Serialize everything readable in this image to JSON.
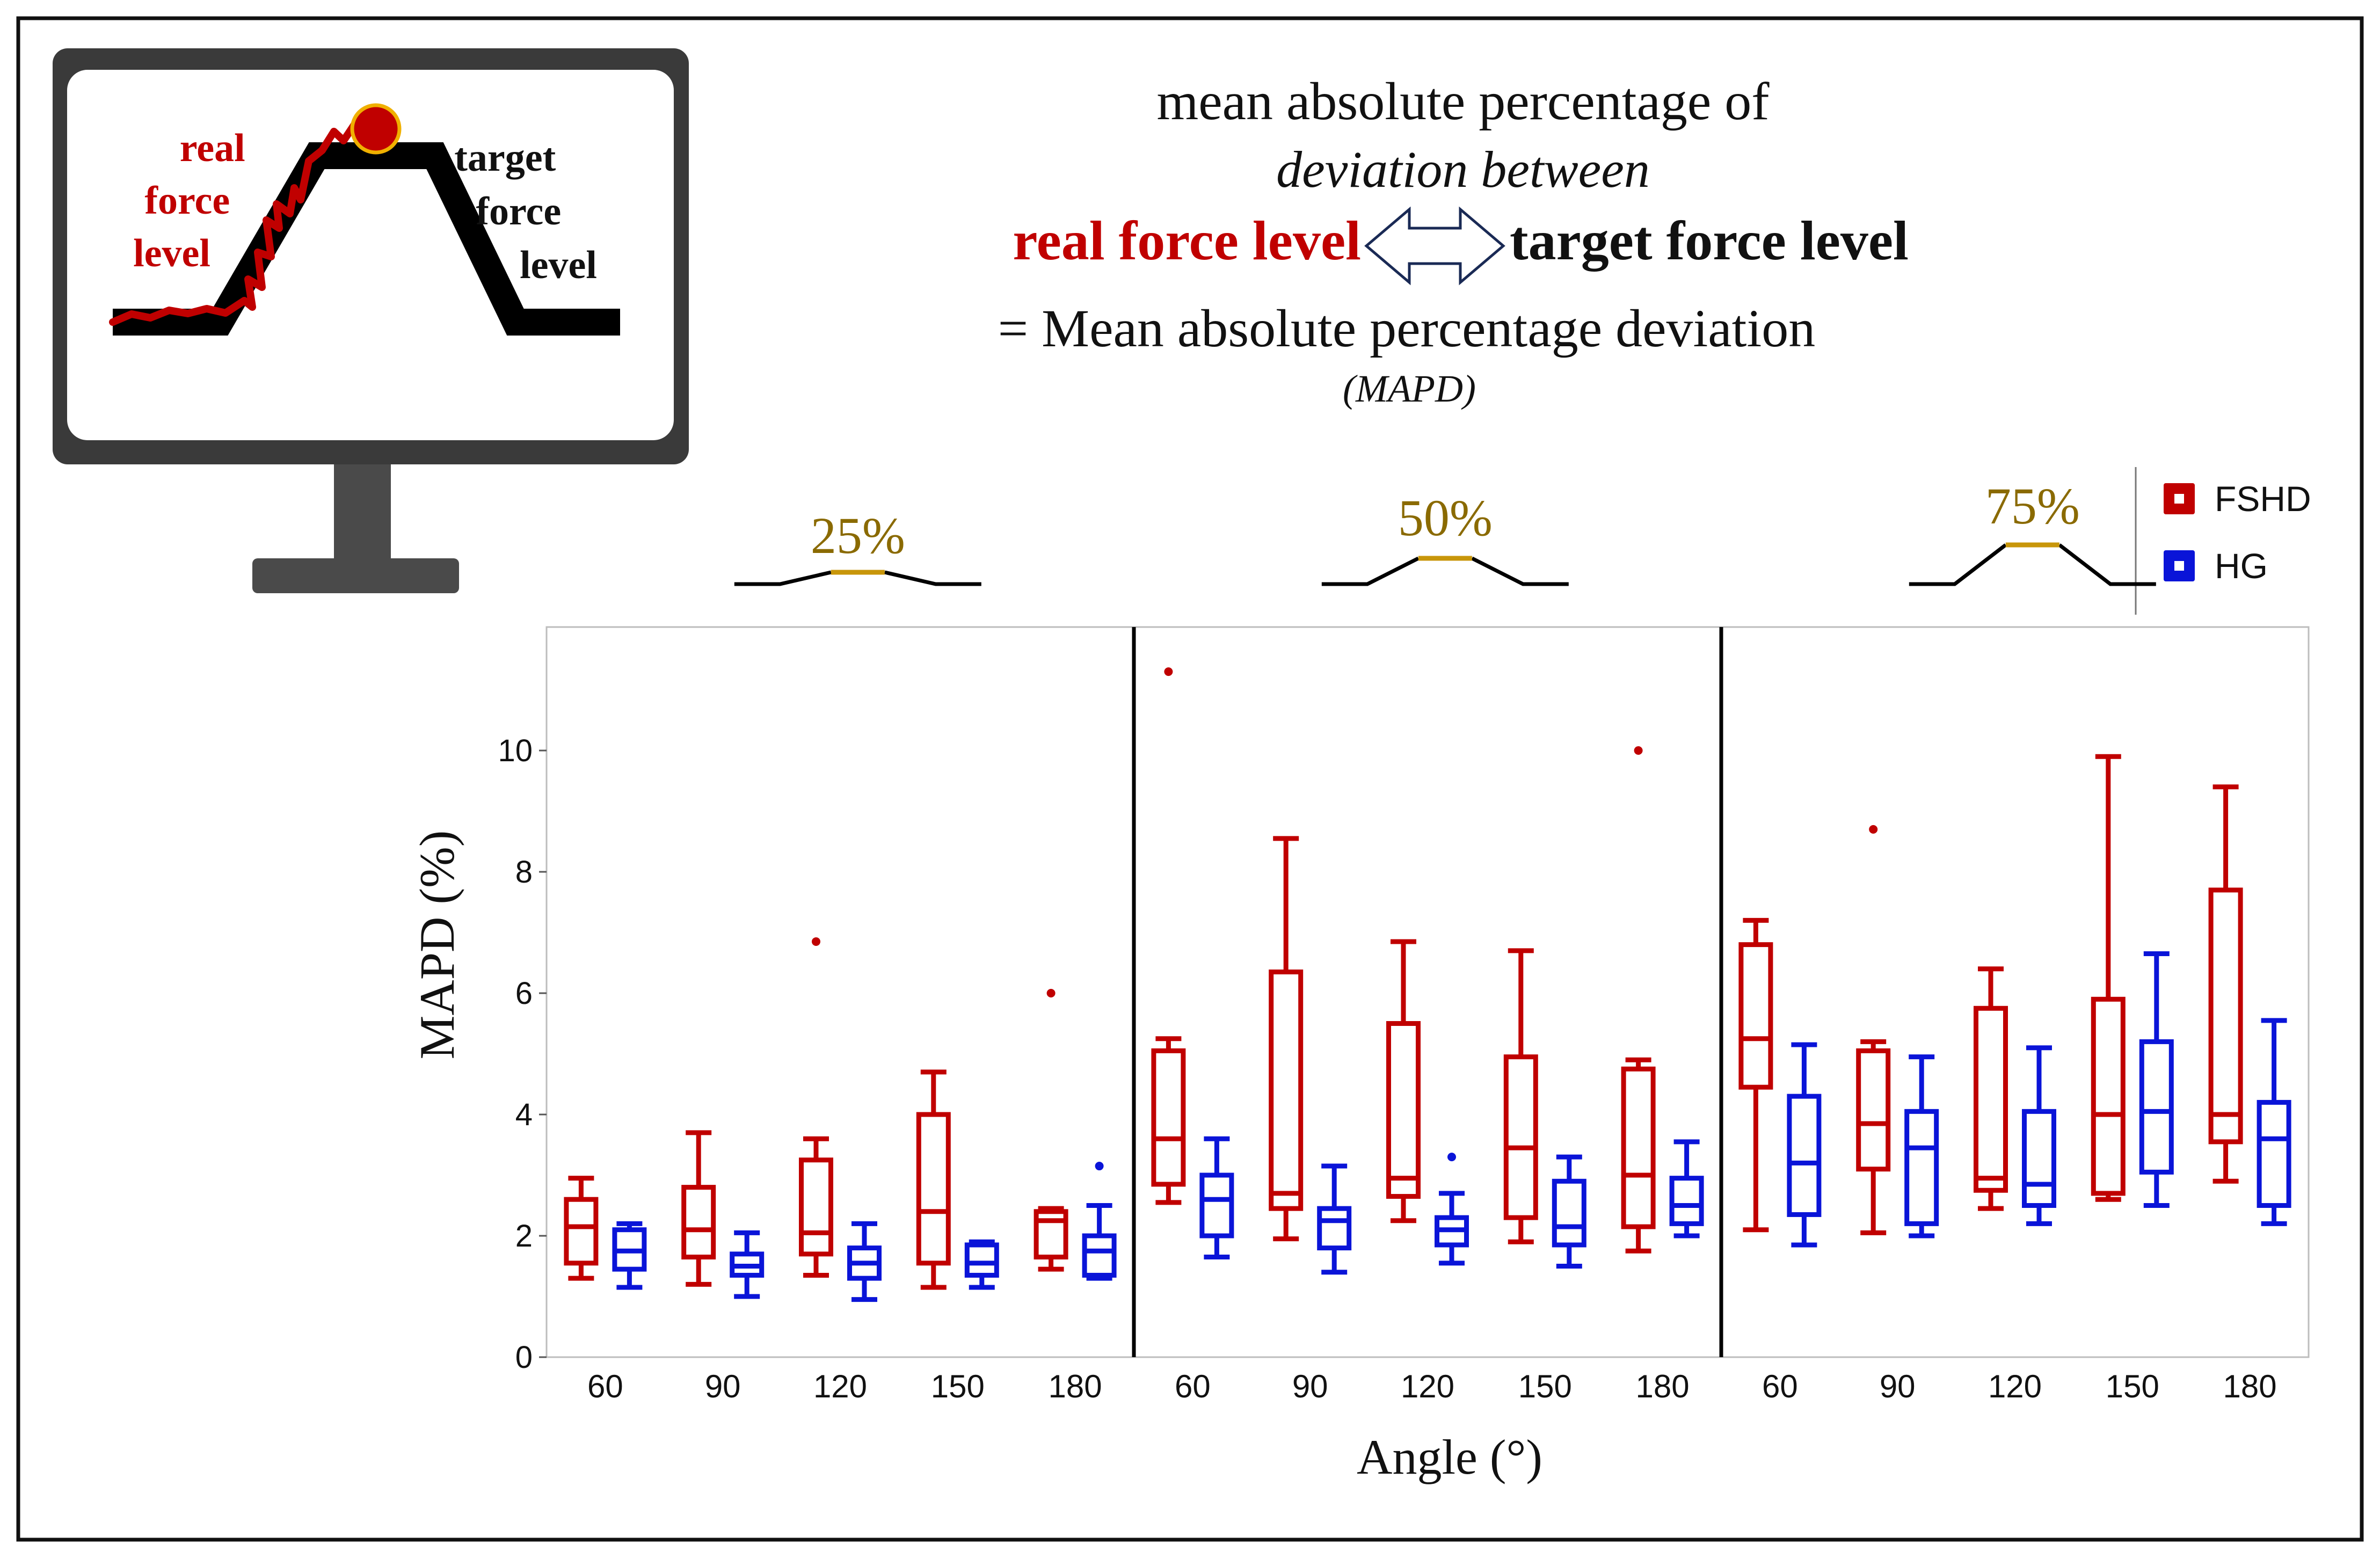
{
  "header": {
    "line1": "mean absolute percentage of",
    "line2": "deviation between",
    "real_label": "real force level",
    "target_label": "target force level",
    "line4": "= Mean absolute percentage deviation",
    "line5": "(MAPD)"
  },
  "monitor": {
    "real_label": [
      "real",
      "force",
      "level"
    ],
    "target_label": [
      "target",
      "force",
      "level"
    ]
  },
  "colors": {
    "FSHD": "#c00000",
    "HG": "#0a14d8",
    "gold": "#c8960a",
    "gold_text": "#8a6a00"
  },
  "chart_data": {
    "type": "box",
    "ylabel": "MAPD (%)",
    "xlabel": "Angle (°)",
    "ylim": [
      0,
      12
    ],
    "yticks": [
      0,
      2,
      4,
      6,
      8,
      10
    ],
    "legend": {
      "position": "top-right",
      "entries": [
        "FSHD",
        "HG"
      ]
    },
    "panels": [
      {
        "label": "25%",
        "categories": [
          "60",
          "90",
          "120",
          "150",
          "180"
        ],
        "series": [
          {
            "name": "FSHD",
            "boxes": [
              {
                "min": 1.3,
                "q1": 1.55,
                "median": 2.15,
                "q3": 2.6,
                "max": 2.95,
                "outliers": []
              },
              {
                "min": 1.2,
                "q1": 1.65,
                "median": 2.1,
                "q3": 2.8,
                "max": 3.7,
                "outliers": []
              },
              {
                "min": 1.35,
                "q1": 1.7,
                "median": 2.05,
                "q3": 3.25,
                "max": 3.6,
                "outliers": [
                  6.85
                ]
              },
              {
                "min": 1.15,
                "q1": 1.55,
                "median": 2.4,
                "q3": 4.0,
                "max": 4.7,
                "outliers": []
              },
              {
                "min": 1.45,
                "q1": 1.65,
                "median": 2.25,
                "q3": 2.4,
                "max": 2.45,
                "outliers": [
                  6.0
                ]
              }
            ]
          },
          {
            "name": "HG",
            "boxes": [
              {
                "min": 1.15,
                "q1": 1.45,
                "median": 1.75,
                "q3": 2.1,
                "max": 2.2,
                "outliers": []
              },
              {
                "min": 1.0,
                "q1": 1.35,
                "median": 1.5,
                "q3": 1.7,
                "max": 2.05,
                "outliers": []
              },
              {
                "min": 0.95,
                "q1": 1.3,
                "median": 1.55,
                "q3": 1.8,
                "max": 2.2,
                "outliers": []
              },
              {
                "min": 1.15,
                "q1": 1.35,
                "median": 1.55,
                "q3": 1.85,
                "max": 1.9,
                "outliers": []
              },
              {
                "min": 1.3,
                "q1": 1.35,
                "median": 1.75,
                "q3": 2.0,
                "max": 2.5,
                "outliers": [
                  3.15
                ]
              }
            ]
          }
        ]
      },
      {
        "label": "50%",
        "categories": [
          "60",
          "90",
          "120",
          "150",
          "180"
        ],
        "series": [
          {
            "name": "FSHD",
            "boxes": [
              {
                "min": 2.55,
                "q1": 2.85,
                "median": 3.6,
                "q3": 5.05,
                "max": 5.25,
                "outliers": [
                  11.3
                ]
              },
              {
                "min": 1.95,
                "q1": 2.45,
                "median": 2.7,
                "q3": 6.35,
                "max": 8.55,
                "outliers": []
              },
              {
                "min": 2.25,
                "q1": 2.65,
                "median": 2.95,
                "q3": 5.5,
                "max": 6.85,
                "outliers": []
              },
              {
                "min": 1.9,
                "q1": 2.3,
                "median": 3.45,
                "q3": 4.95,
                "max": 6.7,
                "outliers": []
              },
              {
                "min": 1.75,
                "q1": 2.15,
                "median": 3.0,
                "q3": 4.75,
                "max": 4.9,
                "outliers": [
                  10.0
                ]
              }
            ]
          },
          {
            "name": "HG",
            "boxes": [
              {
                "min": 1.65,
                "q1": 2.0,
                "median": 2.6,
                "q3": 3.0,
                "max": 3.6,
                "outliers": []
              },
              {
                "min": 1.4,
                "q1": 1.8,
                "median": 2.25,
                "q3": 2.45,
                "max": 3.15,
                "outliers": []
              },
              {
                "min": 1.55,
                "q1": 1.85,
                "median": 2.1,
                "q3": 2.3,
                "max": 2.7,
                "outliers": [
                  3.3
                ]
              },
              {
                "min": 1.5,
                "q1": 1.85,
                "median": 2.15,
                "q3": 2.9,
                "max": 3.3,
                "outliers": []
              },
              {
                "min": 2.0,
                "q1": 2.2,
                "median": 2.5,
                "q3": 2.95,
                "max": 3.55,
                "outliers": []
              }
            ]
          }
        ]
      },
      {
        "label": "75%",
        "categories": [
          "60",
          "90",
          "120",
          "150",
          "180"
        ],
        "series": [
          {
            "name": "FSHD",
            "boxes": [
              {
                "min": 2.1,
                "q1": 4.45,
                "median": 5.25,
                "q3": 6.8,
                "max": 7.2,
                "outliers": []
              },
              {
                "min": 2.05,
                "q1": 3.1,
                "median": 3.85,
                "q3": 5.05,
                "max": 5.2,
                "outliers": [
                  8.7
                ]
              },
              {
                "min": 2.45,
                "q1": 2.75,
                "median": 2.95,
                "q3": 5.75,
                "max": 6.4,
                "outliers": []
              },
              {
                "min": 2.6,
                "q1": 2.7,
                "median": 4.0,
                "q3": 5.9,
                "max": 9.9,
                "outliers": []
              },
              {
                "min": 2.9,
                "q1": 3.55,
                "median": 4.0,
                "q3": 7.7,
                "max": 9.4,
                "outliers": []
              }
            ]
          },
          {
            "name": "HG",
            "boxes": [
              {
                "min": 1.85,
                "q1": 2.35,
                "median": 3.2,
                "q3": 4.3,
                "max": 5.15,
                "outliers": []
              },
              {
                "min": 2.0,
                "q1": 2.2,
                "median": 3.45,
                "q3": 4.05,
                "max": 4.95,
                "outliers": []
              },
              {
                "min": 2.2,
                "q1": 2.5,
                "median": 2.85,
                "q3": 4.05,
                "max": 5.1,
                "outliers": []
              },
              {
                "min": 2.5,
                "q1": 3.05,
                "median": 4.05,
                "q3": 5.2,
                "max": 6.65,
                "outliers": []
              },
              {
                "min": 2.2,
                "q1": 2.5,
                "median": 3.6,
                "q3": 4.2,
                "max": 5.55,
                "outliers": []
              }
            ]
          }
        ]
      }
    ]
  }
}
